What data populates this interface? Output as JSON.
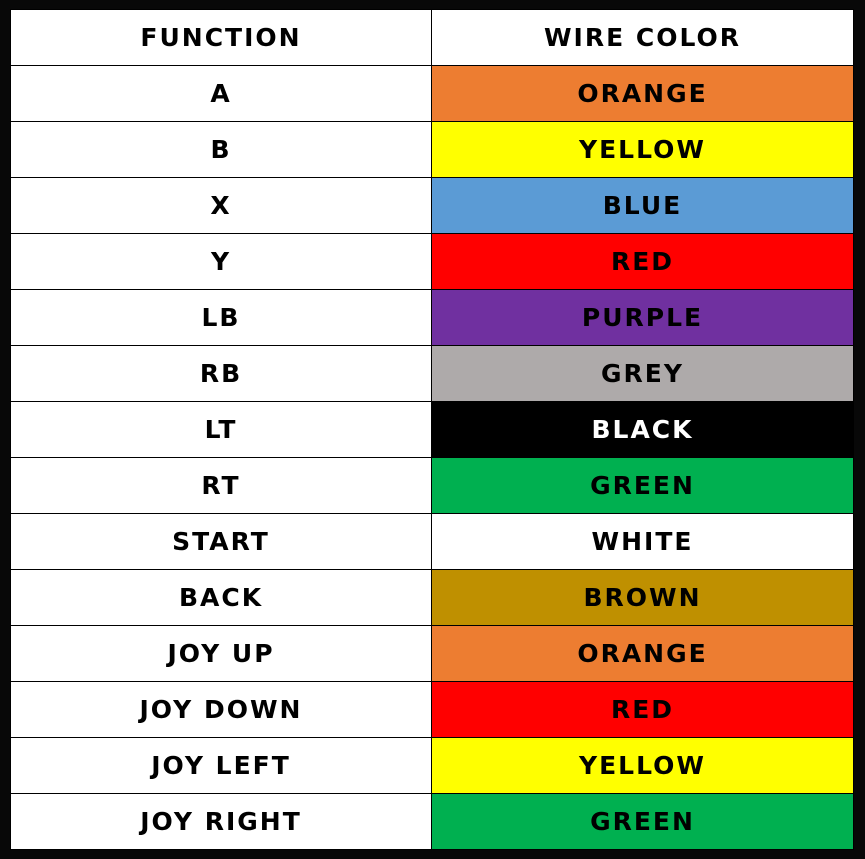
{
  "header": {
    "function": "FUNCTION",
    "wire_color": "WIRE COLOR"
  },
  "rows": [
    {
      "function": "A",
      "color": "ORANGE",
      "fill": "#ED7D31",
      "text": "#000000"
    },
    {
      "function": "B",
      "color": "YELLOW",
      "fill": "#FFFF00",
      "text": "#000000"
    },
    {
      "function": "X",
      "color": "BLUE",
      "fill": "#5B9BD5",
      "text": "#000000"
    },
    {
      "function": "Y",
      "color": "RED",
      "fill": "#FF0000",
      "text": "#000000"
    },
    {
      "function": "LB",
      "color": "PURPLE",
      "fill": "#7030A0",
      "text": "#000000"
    },
    {
      "function": "RB",
      "color": "GREY",
      "fill": "#AEAAAA",
      "text": "#000000"
    },
    {
      "function": "LT",
      "color": "BLACK",
      "fill": "#000000",
      "text": "#FFFFFF"
    },
    {
      "function": "RT",
      "color": "GREEN",
      "fill": "#00B050",
      "text": "#000000"
    },
    {
      "function": "START",
      "color": "WHITE",
      "fill": "#FFFFFF",
      "text": "#000000"
    },
    {
      "function": "BACK",
      "color": "BROWN",
      "fill": "#BF9000",
      "text": "#000000"
    },
    {
      "function": "JOY UP",
      "color": "ORANGE",
      "fill": "#ED7D31",
      "text": "#000000"
    },
    {
      "function": "JOY DOWN",
      "color": "RED",
      "fill": "#FF0000",
      "text": "#000000"
    },
    {
      "function": "JOY LEFT",
      "color": "YELLOW",
      "fill": "#FFFF00",
      "text": "#000000"
    },
    {
      "function": "JOY RIGHT",
      "color": "GREEN",
      "fill": "#00B050",
      "text": "#000000"
    }
  ]
}
